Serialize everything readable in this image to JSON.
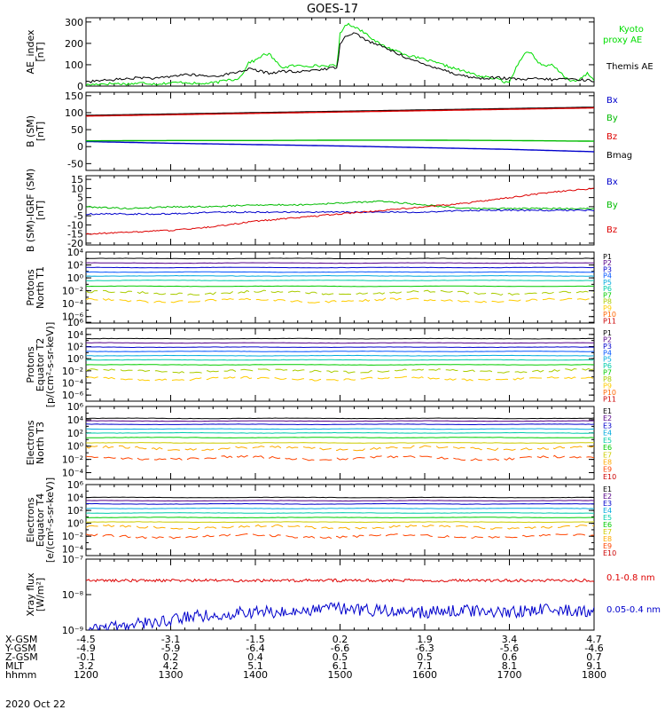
{
  "title": "GOES-17",
  "date_label": "2020 Oct 22",
  "footer": {
    "row_labels": [
      "X-GSM",
      "Y-GSM",
      "Z-GSM",
      "MLT",
      "hhmm"
    ],
    "columns": [
      [
        "-4.5",
        "-4.9",
        "-0.1",
        "3.2",
        "1200"
      ],
      [
        "-3.1",
        "-5.9",
        "0.2",
        "4.2",
        "1300"
      ],
      [
        "-1.5",
        "-6.4",
        "0.4",
        "5.1",
        "1400"
      ],
      [
        "0.2",
        "-6.6",
        "0.5",
        "6.1",
        "1500"
      ],
      [
        "1.9",
        "-6.3",
        "0.5",
        "7.1",
        "1600"
      ],
      [
        "3.4",
        "-5.6",
        "0.6",
        "8.1",
        "1700"
      ],
      [
        "4.7",
        "-4.6",
        "0.7",
        "9.1",
        "1800"
      ]
    ]
  },
  "chart_data": [
    {
      "id": "ae",
      "type": "line",
      "ylabel": [
        "AE_index",
        "[nT]"
      ],
      "ylim": [
        0,
        320
      ],
      "ytick_labels": [
        "0",
        "100",
        "200",
        "300"
      ],
      "xlim": [
        1200,
        1800
      ],
      "legend": [
        {
          "label": "Kyoto",
          "color": "#00dd00"
        },
        {
          "label": "proxy AE",
          "color": "#00dd00"
        },
        {
          "label": "Themis AE",
          "color": "#000000"
        }
      ],
      "series": [
        {
          "name": "Kyoto proxy AE",
          "color": "#00dd00",
          "x": [
            1200,
            1210,
            1220,
            1230,
            1240,
            1250,
            1300,
            1310,
            1320,
            1330,
            1335,
            1340,
            1345,
            1350,
            1355,
            1400,
            1405,
            1410,
            1415,
            1420,
            1425,
            1430,
            1435,
            1440,
            1445,
            1450,
            1455,
            1458,
            1500,
            1505,
            1510,
            1515,
            1520,
            1525,
            1530,
            1540,
            1550,
            1600,
            1610,
            1620,
            1630,
            1640,
            1650,
            1655,
            1658,
            1700,
            1705,
            1710,
            1715,
            1720,
            1725,
            1730,
            1735,
            1740,
            1745,
            1750,
            1755,
            1800
          ],
          "y": [
            5,
            10,
            12,
            10,
            15,
            10,
            15,
            18,
            10,
            15,
            20,
            30,
            30,
            45,
            110,
            120,
            145,
            150,
            110,
            85,
            95,
            95,
            95,
            95,
            95,
            95,
            95,
            95,
            250,
            290,
            280,
            260,
            240,
            210,
            190,
            165,
            140,
            125,
            105,
            85,
            65,
            45,
            35,
            25,
            15,
            20,
            90,
            150,
            160,
            115,
            90,
            100,
            70,
            40,
            20,
            30,
            60,
            30
          ]
        },
        {
          "name": "Themis AE",
          "color": "#000000",
          "x": [
            1200,
            1210,
            1220,
            1230,
            1240,
            1250,
            1300,
            1310,
            1320,
            1330,
            1340,
            1350,
            1355,
            1400,
            1410,
            1420,
            1430,
            1440,
            1450,
            1455,
            1458,
            1500,
            1505,
            1510,
            1515,
            1520,
            1530,
            1540,
            1550,
            1600,
            1610,
            1620,
            1630,
            1640,
            1650,
            1700,
            1710,
            1720,
            1730,
            1740,
            1750,
            1800
          ],
          "y": [
            20,
            25,
            30,
            35,
            40,
            35,
            45,
            55,
            50,
            45,
            55,
            70,
            80,
            75,
            60,
            70,
            65,
            75,
            80,
            85,
            90,
            200,
            240,
            250,
            230,
            210,
            185,
            155,
            125,
            100,
            85,
            60,
            45,
            35,
            40,
            35,
            30,
            35,
            30,
            35,
            30,
            25
          ]
        }
      ]
    },
    {
      "id": "bsm",
      "type": "line",
      "ylabel": [
        "B (SM)",
        "[nT]"
      ],
      "ylim": [
        -70,
        160
      ],
      "ytick_labels": [
        "-50",
        "0",
        "50",
        "100",
        "150"
      ],
      "xlim": [
        1200,
        1800
      ],
      "legend": [
        {
          "label": "Bx",
          "color": "#0000cc"
        },
        {
          "label": "By",
          "color": "#00bb00"
        },
        {
          "label": "Bz",
          "color": "#dd0000"
        },
        {
          "label": "Bmag",
          "color": "#000000"
        }
      ],
      "series": [
        {
          "name": "Bx",
          "color": "#0000cc",
          "x": [
            1200,
            1300,
            1400,
            1500,
            1600,
            1700,
            1800
          ],
          "y": [
            15,
            10,
            6,
            2,
            -3,
            -8,
            -15
          ]
        },
        {
          "name": "By",
          "color": "#00bb00",
          "x": [
            1200,
            1300,
            1400,
            1500,
            1600,
            1700,
            1800
          ],
          "y": [
            17,
            18,
            18,
            19,
            19,
            18,
            16
          ]
        },
        {
          "name": "Bmag",
          "color": "#000000",
          "x": [
            1200,
            1300,
            1400,
            1500,
            1600,
            1700,
            1800
          ],
          "y": [
            92,
            96,
            100,
            104,
            108,
            112,
            116
          ]
        },
        {
          "name": "Bz",
          "color": "#dd0000",
          "x": [
            1200,
            1300,
            1400,
            1500,
            1600,
            1700,
            1800
          ],
          "y": [
            90,
            94,
            98,
            102,
            106,
            110,
            114
          ]
        }
      ]
    },
    {
      "id": "bigrf",
      "type": "line",
      "ylabel": [
        "B (SM)-IGRF (SM)",
        "[nT]"
      ],
      "ylim": [
        -21,
        17
      ],
      "ytick_labels": [
        "-20",
        "-15",
        "-10",
        "-5",
        "0",
        "5",
        "10",
        "15"
      ],
      "xlim": [
        1200,
        1800
      ],
      "legend": [
        {
          "label": "Bx",
          "color": "#0000cc"
        },
        {
          "label": "By",
          "color": "#00bb00"
        },
        {
          "label": "Bz",
          "color": "#dd0000"
        }
      ],
      "series": [
        {
          "name": "By",
          "color": "#00bb00",
          "x": [
            1200,
            1230,
            1300,
            1330,
            1400,
            1430,
            1500,
            1530,
            1600,
            1630,
            1700,
            1730,
            1800
          ],
          "y": [
            0,
            -1,
            0,
            0,
            1,
            1,
            2,
            3,
            1,
            -1,
            -1,
            -1,
            -1
          ]
        },
        {
          "name": "Bx",
          "color": "#0000cc",
          "x": [
            1200,
            1230,
            1300,
            1330,
            1400,
            1430,
            1500,
            1530,
            1600,
            1630,
            1700,
            1730,
            1800
          ],
          "y": [
            -4,
            -4,
            -4,
            -3,
            -3,
            -3,
            -3,
            -3,
            -3,
            -2,
            -2,
            -2,
            -2
          ]
        },
        {
          "name": "Bz",
          "color": "#dd0000",
          "x": [
            1200,
            1230,
            1300,
            1330,
            1400,
            1430,
            1500,
            1530,
            1600,
            1630,
            1700,
            1730,
            1800
          ],
          "y": [
            -15,
            -14,
            -13,
            -11,
            -8,
            -6,
            -4,
            -2,
            0,
            2,
            5,
            8,
            10
          ]
        }
      ]
    },
    {
      "id": "protons_t1",
      "type": "line",
      "ylabel": [
        "Protons",
        "North T1"
      ],
      "scale": "log",
      "ylim_exp": [
        -7,
        4
      ],
      "ytick_labels": [
        "10⁻⁶",
        "10⁻⁴",
        "10⁻²",
        "10⁰",
        "10²",
        "10⁴"
      ],
      "ytick_exps": [
        -6,
        -4,
        -2,
        0,
        2,
        4
      ],
      "xlim": [
        1200,
        1800
      ],
      "channels": [
        "P1",
        "P2",
        "P3",
        "P4",
        "P5",
        "P6",
        "P7",
        "P8",
        "P9",
        "P10",
        "P11"
      ],
      "colors": [
        "#000000",
        "#550088",
        "#0000cc",
        "#0055ff",
        "#00aadd",
        "#00ccaa",
        "#00cc00",
        "#aacc00",
        "#ffcc00",
        "#ff6600",
        "#cc0000"
      ],
      "log_levels": [
        3.0,
        2.3,
        1.6,
        0.9,
        0.3,
        -0.4,
        -1.3,
        -2.3,
        -3.5,
        null,
        null
      ]
    },
    {
      "id": "protons_t2",
      "type": "line",
      "ylabel": [
        "Protons",
        "Equator T2",
        "[p/(cm²-s-sr-keV)]"
      ],
      "scale": "log",
      "ylim_exp": [
        -7,
        5
      ],
      "ytick_labels": [
        "10⁻⁶",
        "10⁻⁴",
        "10⁻²",
        "10⁰",
        "10²",
        "10⁴",
        "10⁶"
      ],
      "ytick_exps": [
        -6,
        -4,
        -2,
        0,
        2,
        4,
        6
      ],
      "xlim": [
        1200,
        1800
      ],
      "channels": [
        "P1",
        "P2",
        "P3",
        "P4",
        "P5",
        "P6",
        "P7",
        "P8",
        "P9",
        "P10",
        "P11"
      ],
      "colors": [
        "#000000",
        "#550088",
        "#0000cc",
        "#0055ff",
        "#00aadd",
        "#00ccaa",
        "#00cc00",
        "#aacc00",
        "#ffcc00",
        "#ff6600",
        "#cc0000"
      ],
      "log_levels": [
        3.3,
        2.6,
        1.9,
        1.2,
        0.5,
        -0.2,
        -1.0,
        -2.0,
        -3.3,
        null,
        null
      ]
    },
    {
      "id": "electrons_t3",
      "type": "line",
      "ylabel": [
        "Electrons",
        "North T3"
      ],
      "scale": "log",
      "ylim_exp": [
        -5,
        6
      ],
      "ytick_labels": [
        "10⁻⁴",
        "10⁻²",
        "10⁰",
        "10²",
        "10⁴",
        "10⁶"
      ],
      "ytick_exps": [
        -4,
        -2,
        0,
        2,
        4,
        6
      ],
      "xlim": [
        1200,
        1800
      ],
      "channels": [
        "E1",
        "E2",
        "E3",
        "E4",
        "E5",
        "E6",
        "E7",
        "E8",
        "E9",
        "E10"
      ],
      "colors": [
        "#000000",
        "#550088",
        "#0000cc",
        "#00aadd",
        "#00ccaa",
        "#00cc00",
        "#cccc00",
        "#ffaa00",
        "#ff4400",
        "#cc0000"
      ],
      "log_levels": [
        4.2,
        3.8,
        3.3,
        2.6,
        2.0,
        1.3,
        0.5,
        -0.3,
        -1.8,
        null
      ]
    },
    {
      "id": "electrons_t4",
      "type": "line",
      "ylabel": [
        "Electrons",
        "Equator T4",
        "[e/(cm²-s-sr-keV)]"
      ],
      "scale": "log",
      "ylim_exp": [
        -5,
        6
      ],
      "ytick_labels": [
        "10⁻⁴",
        "10⁻²",
        "10⁰",
        "10²",
        "10⁴",
        "10⁶"
      ],
      "ytick_exps": [
        -4,
        -2,
        0,
        2,
        4,
        6
      ],
      "xlim": [
        1200,
        1800
      ],
      "channels": [
        "E1",
        "E2",
        "E3",
        "E4",
        "E5",
        "E6",
        "E7",
        "E8",
        "E9",
        "E10"
      ],
      "colors": [
        "#000000",
        "#550088",
        "#0000cc",
        "#00aadd",
        "#00ccaa",
        "#00cc00",
        "#cccc00",
        "#ffaa00",
        "#ff4400",
        "#cc0000"
      ],
      "log_levels": [
        4.0,
        3.5,
        3.0,
        2.3,
        1.6,
        0.9,
        0.2,
        -0.6,
        -2.0,
        null
      ]
    },
    {
      "id": "xray",
      "type": "line",
      "ylabel": [
        "Xray flux",
        "[W/m²]"
      ],
      "scale": "log",
      "ylim_exp": [
        -9,
        -7
      ],
      "ytick_labels": [
        "10⁻⁹",
        "10⁻⁸",
        "10⁻⁷"
      ],
      "ytick_exps": [
        -9,
        -8,
        -7
      ],
      "xlim": [
        1200,
        1800
      ],
      "legend": [
        {
          "label": "0.1-0.8 nm",
          "color": "#dd0000"
        },
        {
          "label": "0.05-0.4 nm",
          "color": "#0000cc"
        }
      ],
      "series": [
        {
          "name": "0.1-0.8 nm",
          "color": "#dd0000",
          "log_level": -7.6
        },
        {
          "name": "0.05-0.4 nm",
          "color": "#0000cc",
          "x": [
            1200,
            1230,
            1300,
            1330,
            1400,
            1430,
            1500,
            1530,
            1600,
            1630,
            1700,
            1730,
            1800
          ],
          "y": [
            -9.05,
            -8.85,
            -8.7,
            -8.55,
            -8.5,
            -8.45,
            -8.4,
            -8.45,
            -8.5,
            -8.45,
            -8.5,
            -8.4,
            -8.5
          ]
        }
      ]
    }
  ]
}
